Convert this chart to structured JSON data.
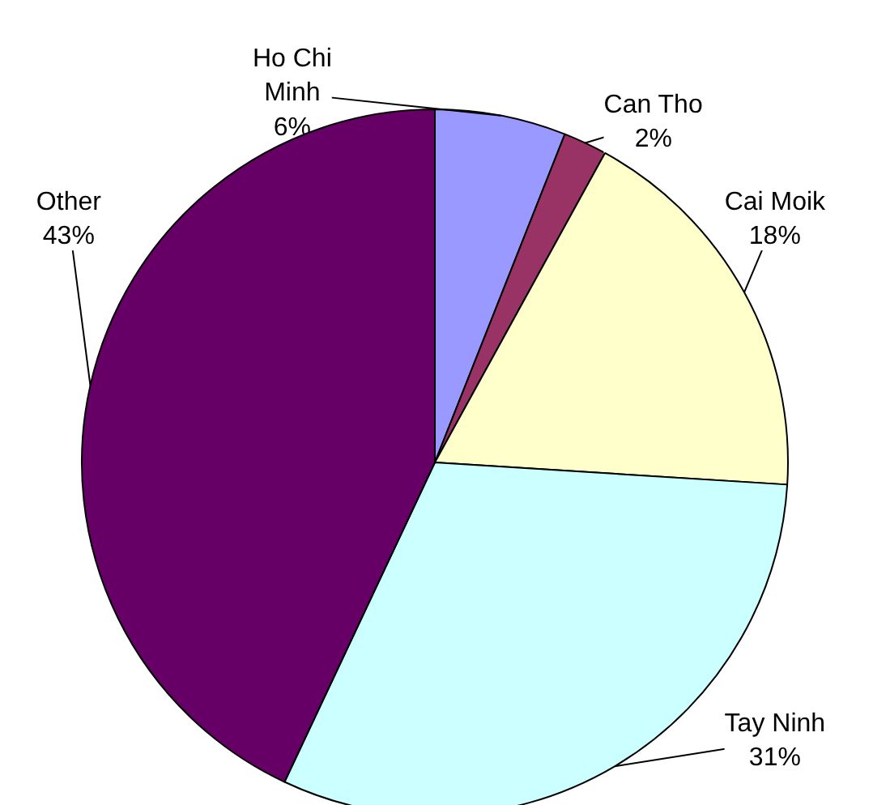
{
  "chart_data": {
    "type": "pie",
    "categories": [
      "Ho Chi Minh",
      "Can Tho",
      "Cai Moik",
      "Tay Ninh",
      "Other"
    ],
    "values": [
      6,
      2,
      18,
      31,
      43
    ],
    "value_labels": [
      "6%",
      "2%",
      "18%",
      "31%",
      "43%"
    ],
    "colors": [
      "#9999ff",
      "#993366",
      "#ffffcc",
      "#ccffff",
      "#660066"
    ]
  }
}
